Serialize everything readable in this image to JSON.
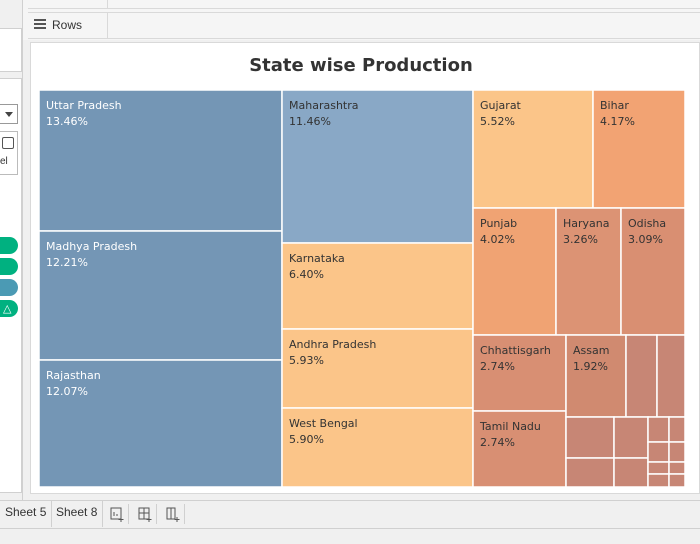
{
  "shelf": {
    "rows_label": "Rows"
  },
  "left_panel": {
    "card_text": "el"
  },
  "tabs": [
    {
      "label": "Sheet 5"
    },
    {
      "label": "Sheet 8"
    }
  ],
  "chart_data": {
    "type": "treemap",
    "title": "State wise Production",
    "value_format": "percent",
    "items": [
      {
        "name": "Uttar Pradesh",
        "value": 13.46,
        "label": "13.46%",
        "color": "#7496b5"
      },
      {
        "name": "Madhya Pradesh",
        "value": 12.21,
        "label": "12.21%",
        "color": "#7496b5"
      },
      {
        "name": "Rajasthan",
        "value": 12.07,
        "label": "12.07%",
        "color": "#7496b5"
      },
      {
        "name": "Maharashtra",
        "value": 11.46,
        "label": "11.46%",
        "color": "#89a8c6"
      },
      {
        "name": "Karnataka",
        "value": 6.4,
        "label": "6.40%",
        "color": "#fbc589"
      },
      {
        "name": "Andhra Pradesh",
        "value": 5.93,
        "label": "5.93%",
        "color": "#fbc589"
      },
      {
        "name": "West Bengal",
        "value": 5.9,
        "label": "5.90%",
        "color": "#fbc589"
      },
      {
        "name": "Gujarat",
        "value": 5.52,
        "label": "5.52%",
        "color": "#fbc589"
      },
      {
        "name": "Bihar",
        "value": 4.17,
        "label": "4.17%",
        "color": "#f2a373"
      },
      {
        "name": "Punjab",
        "value": 4.02,
        "label": "4.02%",
        "color": "#f0a373"
      },
      {
        "name": "Haryana",
        "value": 3.26,
        "label": "3.26%",
        "color": "#dc9374"
      },
      {
        "name": "Odisha",
        "value": 3.09,
        "label": "3.09%",
        "color": "#d98f72"
      },
      {
        "name": "Chhattisgarh",
        "value": 2.74,
        "label": "2.74%",
        "color": "#d88f73"
      },
      {
        "name": "Tamil Nadu",
        "value": 2.74,
        "label": "2.74%",
        "color": "#d88f73"
      },
      {
        "name": "Assam",
        "value": 1.92,
        "label": "1.92%",
        "color": "#d08a70"
      }
    ],
    "small_tiles_color": "#c78675"
  }
}
